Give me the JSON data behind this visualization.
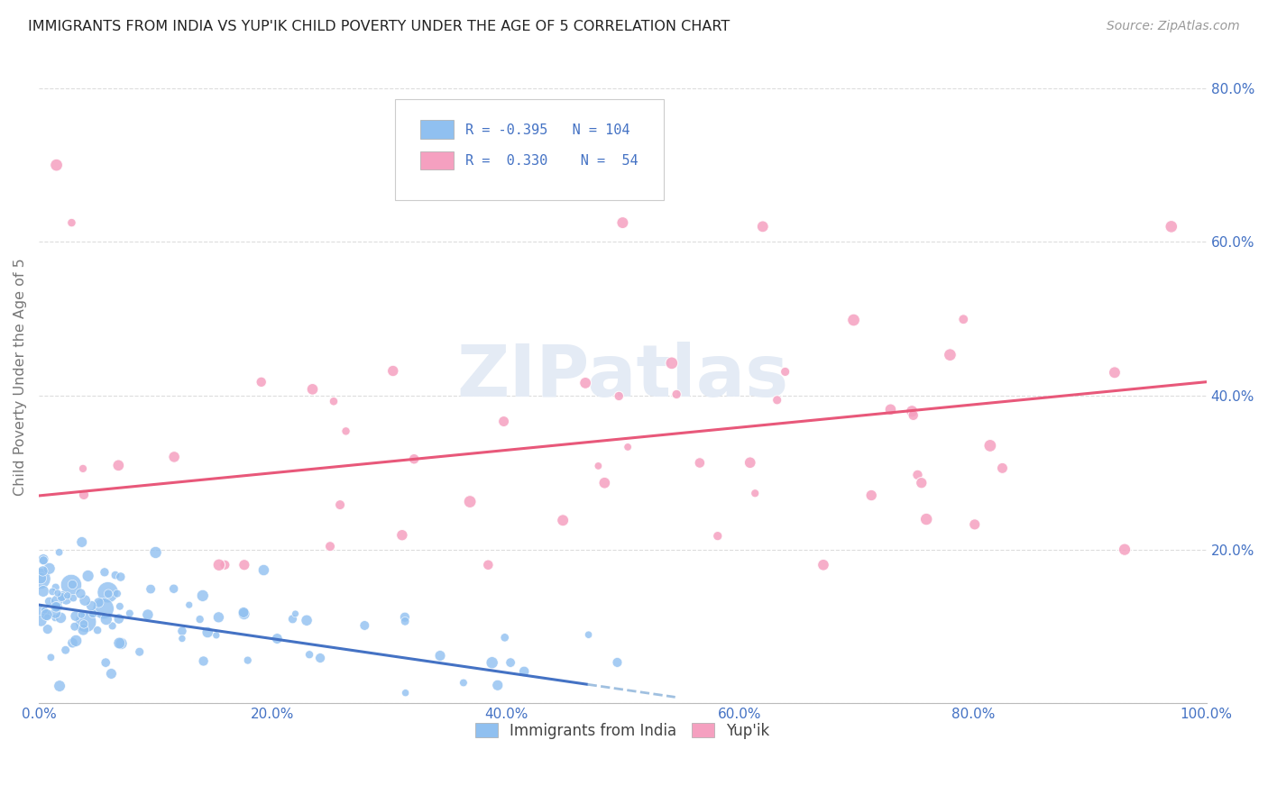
{
  "title": "IMMIGRANTS FROM INDIA VS YUP'IK CHILD POVERTY UNDER THE AGE OF 5 CORRELATION CHART",
  "source": "Source: ZipAtlas.com",
  "ylabel": "Child Poverty Under the Age of 5",
  "xlim": [
    0.0,
    1.0
  ],
  "ylim": [
    0.0,
    0.85
  ],
  "x_ticks": [
    0.0,
    0.1,
    0.2,
    0.3,
    0.4,
    0.5,
    0.6,
    0.7,
    0.8,
    0.9,
    1.0
  ],
  "x_tick_labels": [
    "0.0%",
    "",
    "20.0%",
    "",
    "40.0%",
    "",
    "60.0%",
    "",
    "80.0%",
    "",
    "100.0%"
  ],
  "y_ticks": [
    0.0,
    0.2,
    0.4,
    0.6,
    0.8
  ],
  "y_tick_labels": [
    "",
    "20.0%",
    "40.0%",
    "60.0%",
    "80.0%"
  ],
  "legend_R1": "-0.395",
  "legend_N1": "104",
  "legend_R2": "0.330",
  "legend_N2": "54",
  "color_india": "#90C0F0",
  "color_yupik": "#F5A0C0",
  "color_line_india": "#4472C4",
  "color_line_yupik": "#E8587A",
  "color_line_india_dash": "#A0C0E0",
  "background_color": "#FFFFFF",
  "grid_color": "#DDDDDD",
  "label_color": "#4472C4",
  "india_seed": 10,
  "yupik_seed": 20
}
